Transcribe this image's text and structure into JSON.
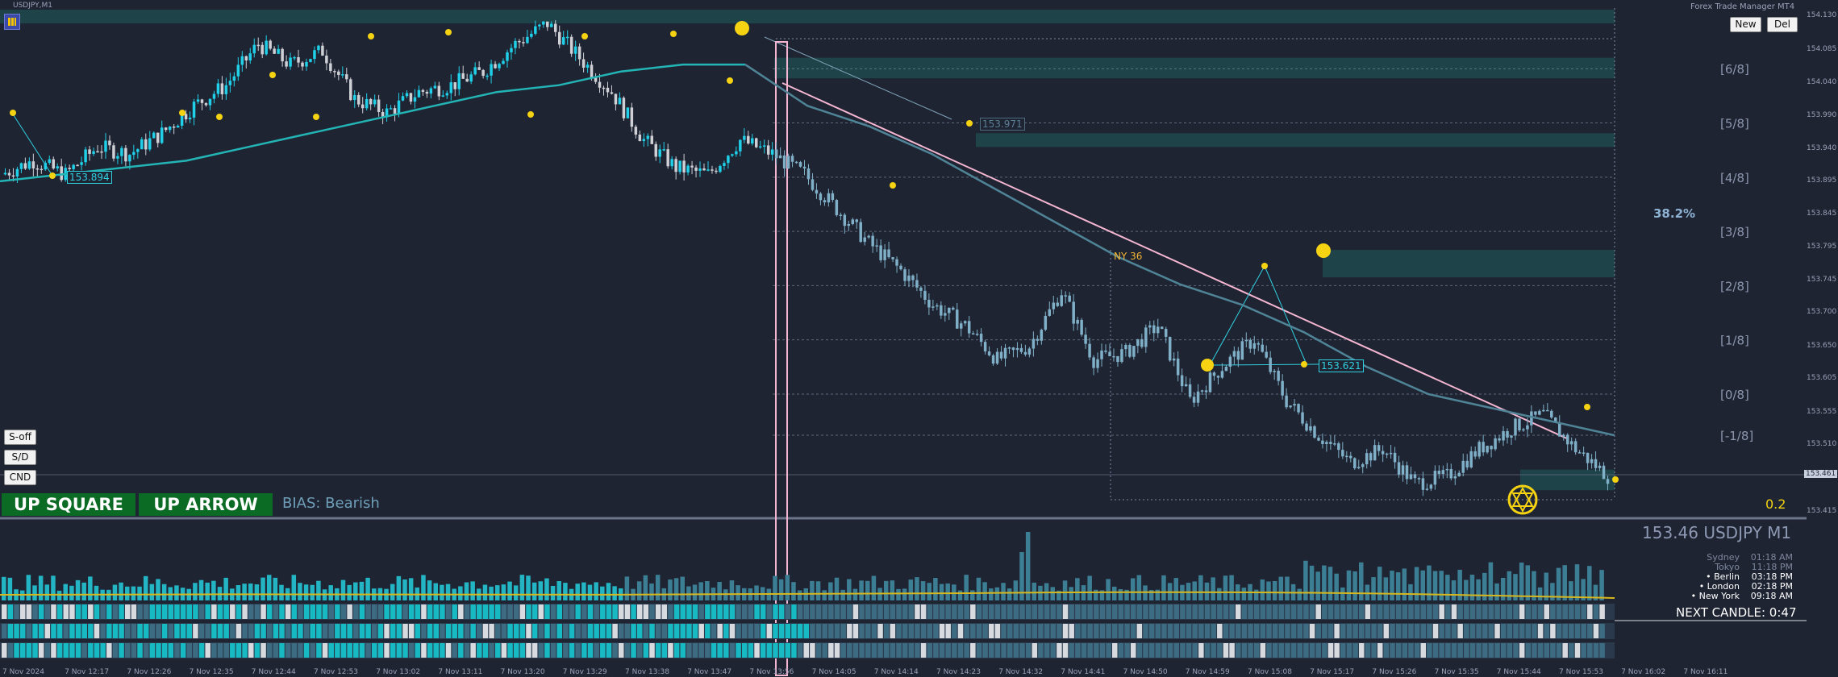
{
  "window": {
    "chart_title": "USDJPY,M1",
    "manager_title": "Forex Trade Manager MT4",
    "new_label": "New",
    "del_label": "Del"
  },
  "side_buttons": {
    "s_off": "S-off",
    "sd": "S/D",
    "cnd": "CND"
  },
  "signals": {
    "square": "UP SQUARE",
    "arrow": "UP ARROW",
    "bias": "BIAS: Bearish"
  },
  "panel": {
    "symbol_line": "153.46 USDJPY M1",
    "next_candle": "NEXT CANDLE: 0:47",
    "sessions": [
      {
        "name": "Sydney",
        "time": "01:18 AM",
        "open": false
      },
      {
        "name": "Tokyo",
        "time": "11:18 PM",
        "open": false
      },
      {
        "name": "• Berlin",
        "time": "03:18 PM",
        "open": true
      },
      {
        "name": "• London",
        "time": "02:18 PM",
        "open": true
      },
      {
        "name": "• New York",
        "time": "09:18 AM",
        "open": true
      }
    ]
  },
  "annotations": {
    "fib_percent": "38.2%",
    "ny_label": "NY 36",
    "fib_value": "0.2",
    "price_tag_1": "153.894",
    "price_tag_2": "153.971",
    "price_tag_3": "153.621"
  },
  "murrey_levels": [
    {
      "label": "[6/8]",
      "price": 154.054
    },
    {
      "label": "[5/8]",
      "price": 153.975
    },
    {
      "label": "[4/8]",
      "price": 153.896
    },
    {
      "label": "[3/8]",
      "price": 153.817
    },
    {
      "label": "[2/8]",
      "price": 153.738
    },
    {
      "label": "[1/8]",
      "price": 153.659
    },
    {
      "label": "[0/8]",
      "price": 153.58
    },
    {
      "label": "[-1/8]",
      "price": 153.52
    }
  ],
  "chart_data": {
    "type": "candlestick",
    "symbol": "USDJPY",
    "timeframe": "M1",
    "current_price": "153.461",
    "y_ticks": [
      "154.130",
      "154.085",
      "154.040",
      "153.990",
      "153.940",
      "153.895",
      "153.845",
      "153.795",
      "153.745",
      "153.700",
      "153.650",
      "153.605",
      "153.555",
      "153.510",
      "153.461",
      "153.415"
    ],
    "x_ticks": [
      "7 Nov 2024",
      "7 Nov 12:17",
      "7 Nov 12:26",
      "7 Nov 12:35",
      "7 Nov 12:44",
      "7 Nov 12:53",
      "7 Nov 13:02",
      "7 Nov 13:11",
      "7 Nov 13:20",
      "7 Nov 13:29",
      "7 Nov 13:38",
      "7 Nov 13:47",
      "7 Nov 13:56",
      "7 Nov 14:05",
      "7 Nov 14:14",
      "7 Nov 14:23",
      "7 Nov 14:32",
      "7 Nov 14:41",
      "7 Nov 14:50",
      "7 Nov 14:59",
      "7 Nov 15:08",
      "7 Nov 15:17",
      "7 Nov 15:26",
      "7 Nov 15:35",
      "7 Nov 15:44",
      "7 Nov 15:53",
      "7 Nov 16:02",
      "7 Nov 16:11"
    ],
    "price_path": [
      153.9,
      153.92,
      153.9,
      153.94,
      153.93,
      153.96,
      154.0,
      154.03,
      154.09,
      154.06,
      154.08,
      154.01,
      153.99,
      154.02,
      154.03,
      154.05,
      154.09,
      154.12,
      154.07,
      154.02,
      153.95,
      153.91,
      153.9,
      153.95,
      153.93,
      153.9,
      153.85,
      153.8,
      153.76,
      153.71,
      153.68,
      153.63,
      153.65,
      153.73,
      153.63,
      153.64,
      153.68,
      153.57,
      153.62,
      153.66,
      153.57,
      153.52,
      153.48,
      153.5,
      153.45,
      153.46,
      153.5,
      153.53,
      153.55,
      153.5,
      153.461
    ],
    "ma_path": [
      153.89,
      153.9,
      153.91,
      153.92,
      153.94,
      153.96,
      153.98,
      154.0,
      154.02,
      154.03,
      154.05,
      154.06,
      154.06,
      154.0,
      153.97,
      153.93,
      153.88,
      153.83,
      153.78,
      153.74,
      153.71,
      153.67,
      153.62,
      153.58,
      153.56,
      153.54,
      153.52
    ],
    "zones": [
      {
        "from": 154.12,
        "to": 154.14
      },
      {
        "from": 154.04,
        "to": 154.07
      },
      {
        "from": 153.94,
        "to": 153.96
      },
      {
        "from": 153.75,
        "to": 153.79
      },
      {
        "from": 153.44,
        "to": 153.47
      }
    ]
  },
  "colors": {
    "background": "#1f2433",
    "bull_candle": "#1fd0e8",
    "bear_candle": "#cfcfd6",
    "down_candle": "#7fb0c8",
    "ma_line": "#23b5b5",
    "trend_line": "#f4b6d0",
    "swing_dot": "#f5d312",
    "zone": "#1e4a4f",
    "signal_green": "#0b6b24",
    "volume": "#23b5c4"
  }
}
